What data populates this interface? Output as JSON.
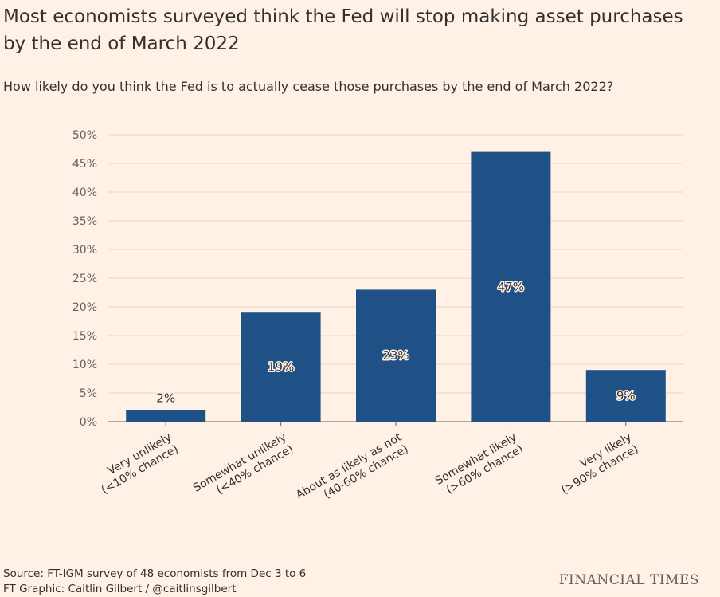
{
  "header": {
    "title": "Most economists surveyed think the Fed will stop making asset purchases by the end of March 2022",
    "subtitle": "How likely do you think the Fed is to actually cease those purchases by the end of March 2022?"
  },
  "footer": {
    "source": "Source: FT-IGM survey of 48 economists from Dec 3 to 6",
    "credit": "FT Graphic: Caitlin Gilbert / @caitlinsgilbert",
    "brand": "FINANCIAL TIMES"
  },
  "colors": {
    "background": "#FFF1E5",
    "bar": "#1F5187",
    "grid": "#E0D6CC"
  },
  "chart_data": {
    "type": "bar",
    "categories": [
      [
        "Very unlikely",
        "(<10% chance)"
      ],
      [
        "Somewhat unlikely",
        "(<40% chance)"
      ],
      [
        "About as likely as not",
        "(40-60% chance)"
      ],
      [
        "Somewhat likely",
        "(>60% chance)"
      ],
      [
        "Very likely",
        "(>90% chance)"
      ]
    ],
    "values": [
      2,
      19,
      23,
      47,
      9
    ],
    "data_labels": [
      "2%",
      "19%",
      "23%",
      "47%",
      "9%"
    ],
    "ylim": [
      0,
      50
    ],
    "yticks": [
      0,
      5,
      10,
      15,
      20,
      25,
      30,
      35,
      40,
      45,
      50
    ],
    "ytick_labels": [
      "0%",
      "5%",
      "10%",
      "15%",
      "20%",
      "25%",
      "30%",
      "35%",
      "40%",
      "45%",
      "50%"
    ],
    "grid": true,
    "xlabel": "",
    "ylabel": ""
  }
}
